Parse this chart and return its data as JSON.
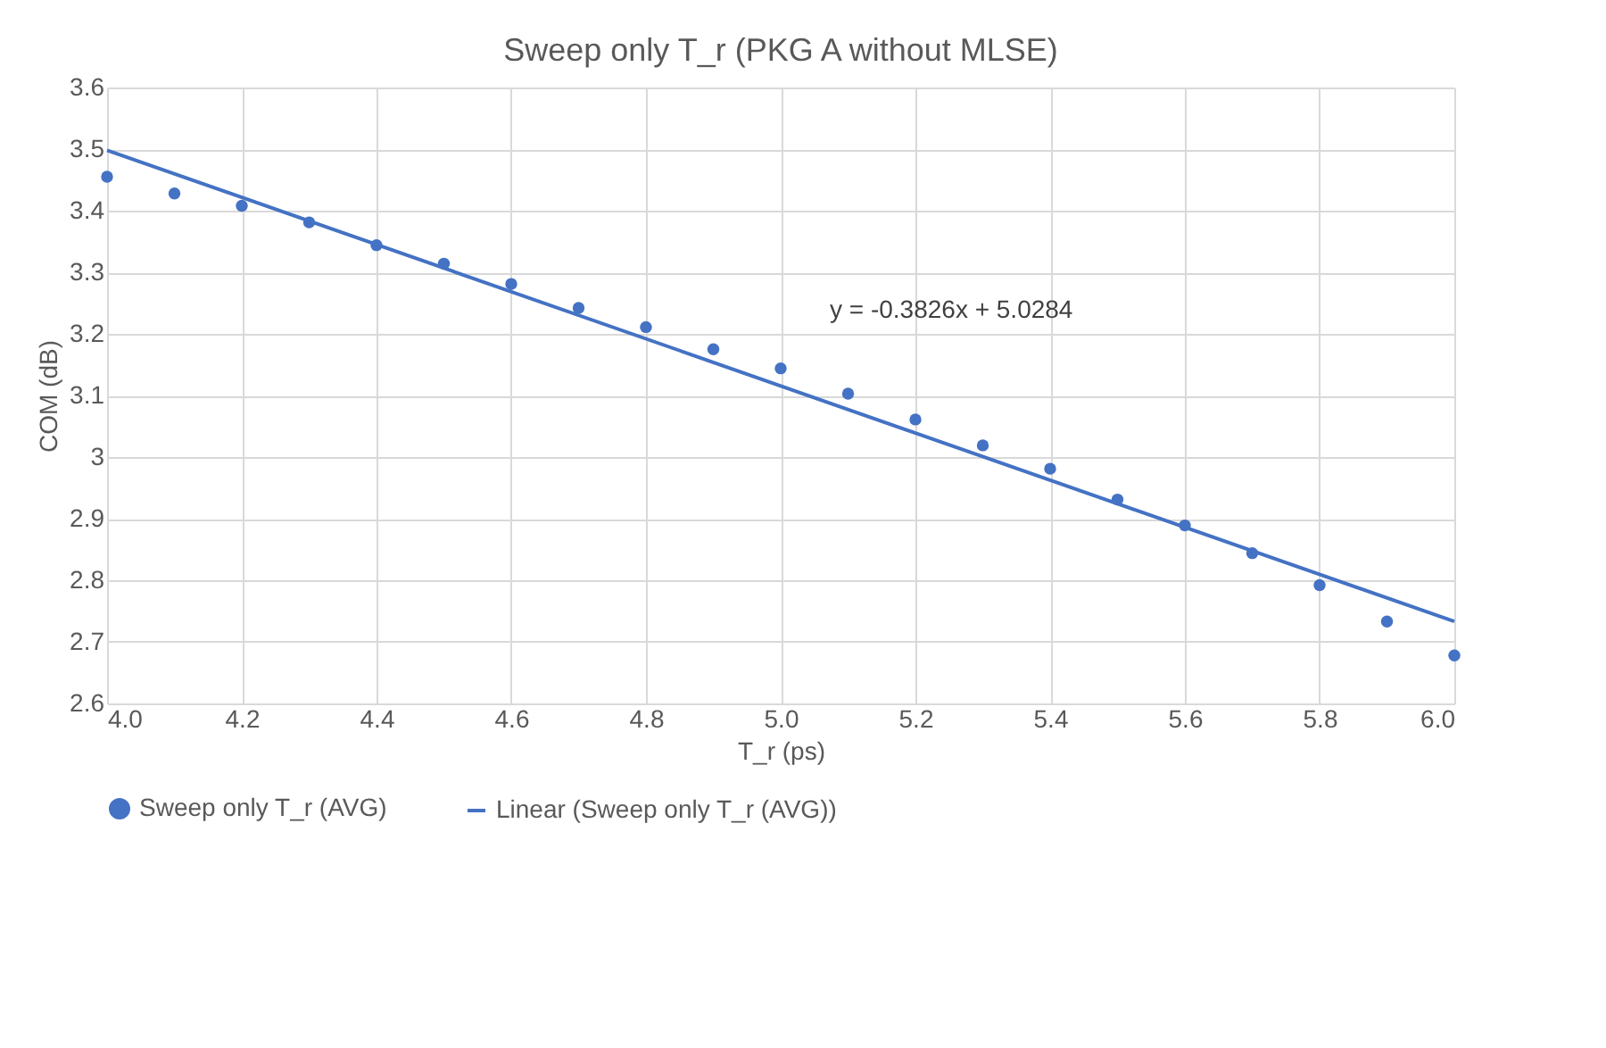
{
  "chart_data": {
    "type": "scatter",
    "title": "Sweep only T_r (PKG A without MLSE)",
    "xlabel": "T_r (ps)",
    "ylabel": "COM (dB)",
    "series": [
      {
        "name": "Sweep only T_r (AVG)",
        "type": "scatter",
        "marker": "circle",
        "color": "#4472c4",
        "x": [
          4.0,
          4.1,
          4.2,
          4.3,
          4.4,
          4.5,
          4.6,
          4.7,
          4.8,
          4.9,
          5.0,
          5.1,
          5.2,
          5.3,
          5.4,
          5.5,
          5.6,
          5.7,
          5.8,
          5.9,
          6.0
        ],
        "values": [
          3.455,
          3.428,
          3.408,
          3.381,
          3.344,
          3.314,
          3.281,
          3.242,
          3.211,
          3.175,
          3.144,
          3.103,
          3.061,
          3.019,
          2.981,
          2.931,
          2.889,
          2.844,
          2.792,
          2.733,
          2.678
        ]
      },
      {
        "name": "Linear (Sweep only T_r (AVG))",
        "type": "line",
        "line_style": "solid",
        "color": "#4472c4",
        "x": [
          4.0,
          6.0
        ],
        "values": [
          3.498,
          2.733
        ]
      }
    ],
    "annotations": [
      "y = -0.3826x + 5.0284"
    ],
    "xlim": [
      4.0,
      6.0
    ],
    "xticks": [
      {
        "value": 4.0,
        "label": "4.0"
      },
      {
        "value": 4.2,
        "label": "4.2"
      },
      {
        "value": 4.4,
        "label": "4.4"
      },
      {
        "value": 4.6,
        "label": "4.6"
      },
      {
        "value": 4.8,
        "label": "4.8"
      },
      {
        "value": 5.0,
        "label": "5.0"
      },
      {
        "value": 5.2,
        "label": "5.2"
      },
      {
        "value": 5.4,
        "label": "5.4"
      },
      {
        "value": 5.6,
        "label": "5.6"
      },
      {
        "value": 5.8,
        "label": "5.8"
      },
      {
        "value": 6.0,
        "label": "6.0"
      }
    ],
    "ylim": [
      2.6,
      3.6
    ],
    "yticks": [
      2.6,
      2.7,
      2.8,
      2.9,
      3,
      3.1,
      3.2,
      3.3,
      3.4,
      3.5,
      3.6
    ],
    "grid": true,
    "legend": "bottom"
  }
}
